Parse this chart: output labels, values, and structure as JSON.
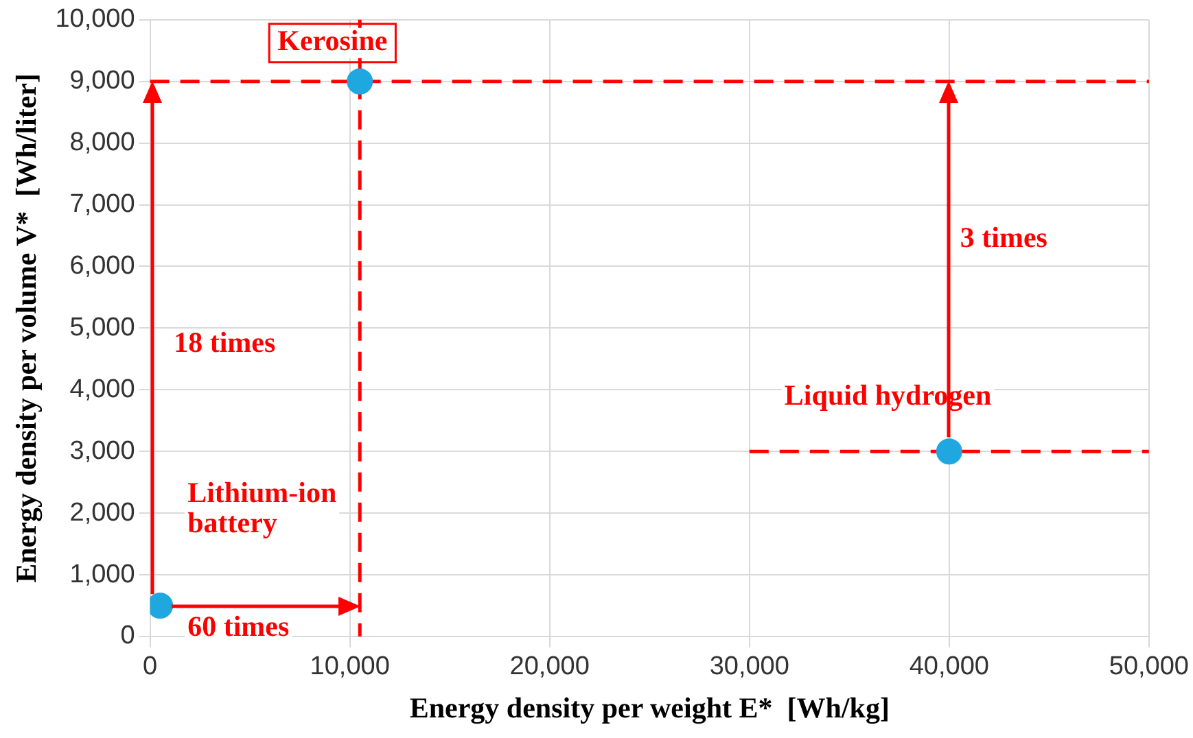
{
  "chart_data": {
    "type": "scatter",
    "xlabel": "Energy density per weight E*  [Wh/kg]",
    "ylabel": "Energy density per volume V*  [Wh/liter]",
    "series": [
      {
        "type": "scatter",
        "color": "#1fa8e0",
        "x": [
          500,
          10500,
          40000
        ],
        "values": [
          500,
          9000,
          3000
        ]
      },
      {
        "type": "line",
        "color": "#ff0000",
        "line_style": "dashed",
        "marker": "none",
        "x": [
          30000,
          50000
        ],
        "values": [
          3000,
          3000
        ]
      }
    ],
    "xlim": [
      0,
      50000
    ],
    "ylim": [
      0,
      10000
    ],
    "xticks": [
      0,
      {
        "value": 10000,
        "label": "10,000"
      },
      {
        "value": 20000,
        "label": "20,000"
      },
      {
        "value": 30000,
        "label": "30,000"
      },
      {
        "value": 40000,
        "label": "40,000"
      },
      {
        "value": 50000,
        "label": "50,000"
      }
    ],
    "yticks": [
      0,
      {
        "value": 1000,
        "label": "1,000"
      },
      {
        "value": 2000,
        "label": "2,000"
      },
      {
        "value": 3000,
        "label": "3,000"
      },
      {
        "value": 4000,
        "label": "4,000"
      },
      {
        "value": 5000,
        "label": "5,000"
      },
      {
        "value": 6000,
        "label": "6,000"
      },
      {
        "value": 7000,
        "label": "7,000"
      },
      {
        "value": 8000,
        "label": "8,000"
      },
      {
        "value": 9000,
        "label": "9,000"
      },
      {
        "value": 10000,
        "label": "10,000"
      }
    ],
    "grid": true,
    "legend": false,
    "marker": "circle",
    "ref_lines": [
      {
        "axis": "y",
        "value": 9000,
        "color": "#ff0000",
        "line_style": "dashed"
      },
      {
        "axis": "x",
        "value": 10500,
        "color": "#ff0000",
        "line_style": "dashed"
      }
    ],
    "annotations": [
      "Kerosine",
      "Lithium-ion battery",
      "Liquid hydrogen",
      "18 times",
      "60 times",
      "3 times"
    ]
  }
}
